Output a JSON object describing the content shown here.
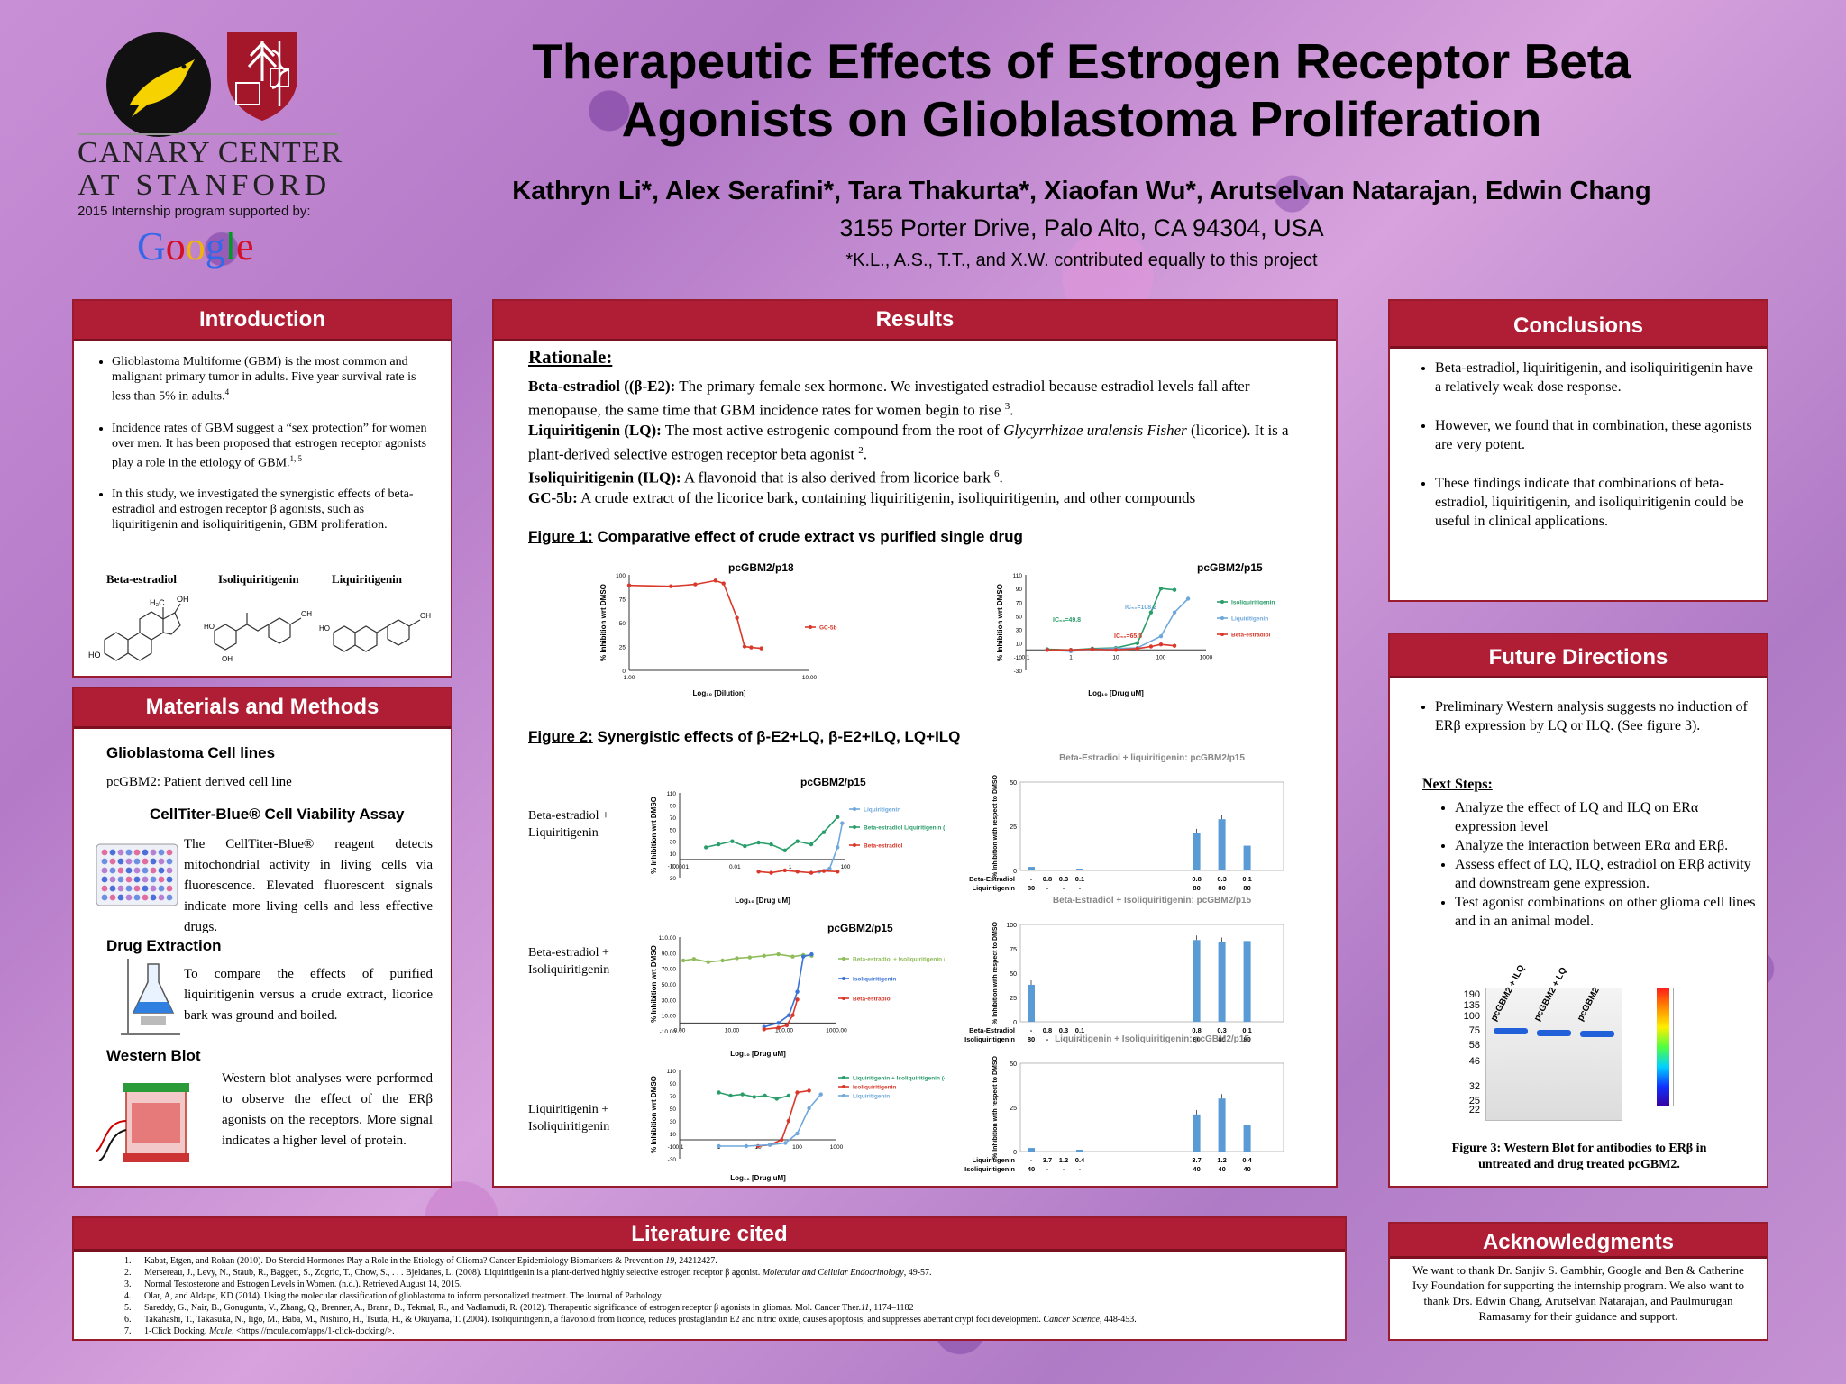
{
  "header": {
    "title_line1": "Therapeutic Effects of Estrogen Receptor Beta",
    "title_line2": "Agonists on Glioblastoma Proliferation",
    "authors": "Kathryn Li*, Alex Serafini*, Tara Thakurta*, Xiaofan Wu*, Arutselvan Natarajan, Edwin Chang",
    "address": "3155 Porter Drive, Palo Alto, CA 94304, USA",
    "note": "*K.L., A.S., T.T., and X.W. contributed equally to this project"
  },
  "logos": {
    "canary_line1": "CANARY CENTER",
    "canary_line2": "AT STANFORD",
    "supported_by": "2015 Internship program supported by:",
    "google_letters": [
      "G",
      "o",
      "o",
      "g",
      "l",
      "e"
    ],
    "google_colors": [
      "#3369e8",
      "#d50f25",
      "#eeb211",
      "#3369e8",
      "#009925",
      "#d50f25"
    ]
  },
  "introduction": {
    "heading": "Introduction",
    "bullets": [
      {
        "text": "Glioblastoma Multiforme (GBM) is the most common and malignant primary tumor in adults. Five year survival rate is less than 5% in adults.",
        "ref": "4"
      },
      {
        "text": "Incidence rates of GBM suggest  a “sex protection” for women over men. It has been proposed that estrogen receptor agonists play a role in the etiology of GBM.",
        "ref": "1, 5"
      },
      {
        "text": "In this study, we investigated the synergistic effects of beta-estradiol and estrogen receptor β agonists, such as liquiritigenin and isoliquiritigenin, GBM proliferation.",
        "ref": ""
      }
    ],
    "structures": [
      "Beta-estradiol",
      "Isoliquiritigenin",
      "Liquiritigenin"
    ],
    "struct_labels": {
      "ho": "HO",
      "oh": "OH",
      "h3c": "H₃C"
    }
  },
  "methods": {
    "heading": "Materials and Methods",
    "cell_lines_title": "Glioblastoma Cell lines",
    "cell_lines_text": "pcGBM2:   Patient derived cell line",
    "assay_title": "CellTiter-Blue® Cell Viability Assay",
    "assay_text": "The CellTiter-Blue® reagent detects mitochondrial activity in living cells via fluorescence. Elevated fluorescent signals indicate more living cells and less effective drugs.",
    "extraction_title": "Drug Extraction",
    "extraction_text": "To compare the effects of purified liquiritigenin versus a crude extract, licorice bark was ground and boiled.",
    "western_title": "Western Blot",
    "western_text": "Western blot analyses were performed to observe the effect of the ERβ agonists on the receptors. More signal indicates a higher level of protein."
  },
  "results": {
    "heading": "Results",
    "rationale": "Rationale:",
    "items": [
      {
        "term": "Beta-estradiol ((β-E2):",
        "text": " The primary female sex hormone. We investigated estradiol because estradiol levels fall after menopause, the same time that GBM incidence rates for women begin to rise ",
        "ref": "3",
        "tail": "."
      },
      {
        "term": "Liquiritigenin (LQ):",
        "text": " The most active estrogenic compound from the root of ",
        "italic": "Glycyrrhizae uralensis Fisher",
        "text2": " (licorice). It is a plant-derived selective estrogen receptor beta agonist ",
        "ref": "2",
        "tail": "."
      },
      {
        "term": "Isoliquiritigenin (ILQ):",
        "text": " A flavonoid that is also derived from licorice bark ",
        "ref": "6",
        "tail": "."
      },
      {
        "term": "GC-5b:",
        "text": " A crude extract of the licorice bark, containing liquiritigenin, isoliquiritigenin, and other compounds",
        "ref": "",
        "tail": ""
      }
    ],
    "fig1_label": "Figure 1:",
    "fig1_title": " Comparative effect of crude extract vs purified single drug",
    "fig2_label": "Figure 2:",
    "fig2_title": "  Synergistic effects of β-E2+LQ, β-E2+ILQ, LQ+ILQ",
    "row_labels": [
      [
        "Beta-estradiol +",
        "Liquiritigenin"
      ],
      [
        "Beta-estradiol +",
        "Isoliquiritigenin"
      ],
      [
        "Liquiritigenin +",
        "Isoliquiritigenin"
      ]
    ]
  },
  "chart_data": [
    {
      "type": "line",
      "title": "pcGBM2/p18",
      "ylabel": "% Inhibition wrt DMSO",
      "xlabel": "Log₁₀ [Dilution]",
      "xscale": "log",
      "xlim": [
        1,
        20
      ],
      "ylim": [
        0,
        100
      ],
      "xticks": [
        "1.00",
        "10.00"
      ],
      "yticks": [
        0,
        25,
        50,
        75,
        100
      ],
      "legend": "right",
      "series": [
        {
          "name": "GC-5b",
          "color": "#d9382a",
          "x": [
            1,
            2,
            3,
            4.2,
            4.8,
            6,
            6.8,
            7.6,
            9
          ],
          "y": [
            89,
            88,
            90,
            94,
            91,
            55,
            25,
            24,
            23
          ]
        }
      ]
    },
    {
      "type": "line",
      "title": "pcGBM2/p15",
      "ylabel": "% Inhibition wrt DMSO",
      "xlabel": "Log₁₀ [Drug uM]",
      "xscale": "log",
      "xlim": [
        0.1,
        1000
      ],
      "ylim": [
        -30,
        110
      ],
      "xticks": [
        "0.1",
        "1",
        "10",
        "100",
        "1000"
      ],
      "yticks": [
        -30,
        -10,
        10,
        30,
        50,
        70,
        90,
        110
      ],
      "annotations": [
        "IC₅₀=49.8",
        "IC₅₀=108.2",
        "IC₅₀=65.5"
      ],
      "legend": "right",
      "series": [
        {
          "name": "Isoliquiritigenin",
          "color": "#2a9d6b",
          "x": [
            0.3,
            1,
            3,
            10,
            30,
            60,
            100,
            200
          ],
          "y": [
            1,
            0,
            2,
            3,
            10,
            55,
            90,
            88
          ]
        },
        {
          "name": "Liquiritigenin",
          "color": "#6fa8dc",
          "x": [
            0.3,
            1,
            3,
            10,
            30,
            100,
            200,
            400
          ],
          "y": [
            0,
            -2,
            1,
            2,
            3,
            20,
            55,
            75
          ]
        },
        {
          "name": "Beta-estradiol",
          "color": "#d9382a",
          "x": [
            0.3,
            1,
            3,
            10,
            30,
            60,
            100,
            200
          ],
          "y": [
            0,
            0,
            1,
            0,
            2,
            5,
            8,
            6
          ]
        }
      ]
    },
    {
      "type": "line",
      "title": "pcGBM2/p15",
      "ylabel": "% Inhibition wrt DMSO",
      "xlabel": "Log₁₀ [Drug uM]",
      "xscale": "log",
      "xlim": [
        0.0001,
        200
      ],
      "ylim": [
        -30,
        110
      ],
      "xticks": [
        "0.0001",
        "0.01",
        "1",
        "100"
      ],
      "yticks": [
        -30,
        -10,
        10,
        30,
        50,
        70,
        90,
        110
      ],
      "legend": "right",
      "series": [
        {
          "name": "Liquiritigenin",
          "color": "#6fa8dc",
          "x": [
            20,
            50,
            100,
            150
          ],
          "y": [
            -20,
            -15,
            20,
            60
          ]
        },
        {
          "name": "Beta-estradiol Liquiritigenin (80uM)",
          "color": "#2a9d6b",
          "x": [
            0.001,
            0.003,
            0.01,
            0.03,
            0.1,
            0.3,
            1,
            3,
            10,
            30,
            100
          ],
          "y": [
            20,
            25,
            30,
            22,
            28,
            25,
            15,
            30,
            25,
            45,
            70
          ]
        },
        {
          "name": "Beta-estradiol",
          "color": "#d9382a",
          "x": [
            0.1,
            0.3,
            1,
            3,
            10,
            30,
            100
          ],
          "y": [
            -20,
            -22,
            -18,
            -20,
            -22,
            -19,
            -20
          ]
        }
      ]
    },
    {
      "type": "bar",
      "title": "Beta-Estradiol + liquiritigenin: pcGBM2/p15",
      "ylabel": "% Inhibition with respect to DMSO",
      "ylim": [
        0,
        50
      ],
      "yticks": [
        0,
        25,
        50
      ],
      "row_labels": [
        "Beta-Estradiol",
        "Liquiritigenin"
      ],
      "categories": [
        [
          "-",
          "80"
        ],
        [
          "0.8",
          "-"
        ],
        [
          "0.3",
          "-"
        ],
        [
          "0.1",
          "-"
        ],
        [
          "0.8",
          "80"
        ],
        [
          "0.3",
          "80"
        ],
        [
          "0.1",
          "80"
        ]
      ],
      "values": [
        2,
        0,
        0,
        1,
        21,
        29,
        14
      ]
    },
    {
      "type": "line",
      "title": "pcGBM2/p15",
      "ylabel": "% Inhibition wrt DMSO",
      "xlabel": "Log₁₀ [Drug uM]",
      "xscale": "log",
      "xlim": [
        0.5,
        1000
      ],
      "ylim": [
        -10,
        110
      ],
      "xticks": [
        "0.00",
        "10.00",
        "100.00",
        "1000.00"
      ],
      "yticks": [
        "-10.00",
        "10.00",
        "30.00",
        "50.00",
        "70.00",
        "90.00",
        "110.00"
      ],
      "legend": "right",
      "series": [
        {
          "name": "Beta-estradiol + Isoliquiritigenin (80uM)",
          "color": "#8fbc5a",
          "x": [
            0.6,
            1,
            2,
            4,
            8,
            15,
            30,
            60,
            120,
            200,
            300
          ],
          "y": [
            80,
            82,
            78,
            80,
            83,
            84,
            86,
            88,
            85,
            87,
            86
          ]
        },
        {
          "name": "Isoliquiritigenin",
          "color": "#3a73d6",
          "x": [
            30,
            60,
            100,
            150,
            200,
            300
          ],
          "y": [
            -5,
            0,
            10,
            40,
            85,
            88
          ]
        },
        {
          "name": "Beta-estradiol",
          "color": "#d9382a",
          "x": [
            30,
            60,
            90,
            120,
            150
          ],
          "y": [
            -8,
            -6,
            -3,
            10,
            30
          ]
        }
      ]
    },
    {
      "type": "bar",
      "title": "Beta-Estradiol + Isoliquiritigenin: pcGBM2/p15",
      "ylabel": "% Inhibition with respect to DMSO",
      "ylim": [
        0,
        100
      ],
      "yticks": [
        0,
        25,
        50,
        75,
        100
      ],
      "row_labels": [
        "Beta-Estradiol",
        "Isoliquiritigenin"
      ],
      "categories": [
        [
          "-",
          "80"
        ],
        [
          "0.8",
          "-"
        ],
        [
          "0.3",
          "-"
        ],
        [
          "0.1",
          "-"
        ],
        [
          "0.8",
          "80"
        ],
        [
          "0.3",
          "80"
        ],
        [
          "0.1",
          "80"
        ]
      ],
      "values": [
        38,
        0,
        0,
        0,
        84,
        82,
        83
      ]
    },
    {
      "type": "line",
      "title": "",
      "ylabel": "% Inhibition wrt DMSO",
      "xlabel": "Log₁₀ [Drug uM]",
      "xscale": "log",
      "xlim": [
        0.1,
        1000
      ],
      "ylim": [
        -30,
        110
      ],
      "xticks": [
        "0.1",
        "1",
        "10",
        "100",
        "1000"
      ],
      "yticks": [
        -30,
        -10,
        10,
        30,
        50,
        70,
        90,
        110
      ],
      "legend": "right",
      "series": [
        {
          "name": "Liquiritigenin + Isoliquiritigenin (40uM)",
          "color": "#2a9d6b",
          "x": [
            1,
            2,
            4,
            8,
            15,
            30,
            60
          ],
          "y": [
            75,
            70,
            72,
            68,
            70,
            65,
            70
          ]
        },
        {
          "name": "Isoliquiritigenin",
          "color": "#d9382a",
          "x": [
            10,
            20,
            40,
            60,
            100,
            200
          ],
          "y": [
            -10,
            -8,
            0,
            30,
            75,
            78
          ]
        },
        {
          "name": "Liquiritigenin",
          "color": "#6fa8dc",
          "x": [
            1,
            5,
            20,
            50,
            100,
            200,
            400
          ],
          "y": [
            -10,
            -10,
            -8,
            -5,
            10,
            50,
            72
          ]
        }
      ]
    },
    {
      "type": "bar",
      "title": "Liquiritigenin + Isoliquiritigenin: pcGBM2/p15",
      "ylabel": "% Inhibition with respect to DMSO",
      "ylim": [
        0,
        50
      ],
      "yticks": [
        0,
        25,
        50
      ],
      "row_labels": [
        "Liquiritigenin",
        "Isoliquiritigenin"
      ],
      "categories": [
        [
          "-",
          "40"
        ],
        [
          "3.7",
          "-"
        ],
        [
          "1.2",
          "-"
        ],
        [
          "0.4",
          "-"
        ],
        [
          "3.7",
          "40"
        ],
        [
          "1.2",
          "40"
        ],
        [
          "0.4",
          "40"
        ]
      ],
      "values": [
        2,
        0,
        0,
        1,
        21,
        30,
        15
      ]
    }
  ],
  "conclusions": {
    "heading": "Conclusions",
    "bullets": [
      "Beta-estradiol, liquiritigenin, and isoliquiritigenin have a relatively weak dose response.",
      "However, we found that in combination, these agonists are very potent.",
      "These findings indicate that combinations of beta-estradiol, liquiritigenin, and isoliquiritigenin could be useful in clinical applications."
    ]
  },
  "future": {
    "heading": "Future Directions",
    "bullet": "Preliminary Western analysis suggests no induction of  ERβ expression by LQ or ILQ. (See figure 3).",
    "next_title": "Next Steps:",
    "next": [
      "Analyze the effect of LQ and ILQ on ERα expression level",
      "Analyze the interaction between ERα and ERβ.",
      "Assess effect of LQ, ILQ, estradiol on ERβ activity and downstream gene expression.",
      "Test agonist combinations on other glioma cell lines and in an animal model."
    ],
    "blot_markers": [
      "190",
      "135",
      "100",
      "75",
      "58",
      "46",
      "32",
      "25",
      "22"
    ],
    "blot_lanes": [
      "pcGBM2 + ILQ",
      "pcGBM2 + LQ",
      "pcGBM2"
    ],
    "fig3_caption": "Figure 3: Western Blot for antibodies to ERβ in untreated and drug treated pcGBM2."
  },
  "literature": {
    "heading": "Literature cited",
    "refs": [
      {
        "n": "1.",
        "text": "Kabat, Etgen, and Rohan (2010). Do Steroid Hormones Play a Role in the Etiology of Glioma? Cancer Epidemiology Biomarkers & Prevention ",
        "italic": "19",
        "tail": ", 24212427."
      },
      {
        "n": "2.",
        "text": "Mersereau, J., Levy, N., Staub, R., Baggett, S., Zogric, T., Chow, S., . . . Bjeldanes, L. (2008). Liquiritigenin is a plant-derived highly selective estrogen receptor β agonist. ",
        "italic": "Molecular and Cellular Endocrinology",
        "tail": ", 49-57."
      },
      {
        "n": "3.",
        "text": "Normal Testosterone and Estrogen Levels in Women. (n.d.). Retrieved August 14, 2015.",
        "italic": "",
        "tail": ""
      },
      {
        "n": "4.",
        "text": "Olar, A, and Aldape, KD (2014). Using the molecular classification of glioblastoma to inform personalized treatment. The Journal of Pathology",
        "italic": "",
        "tail": ""
      },
      {
        "n": "5.",
        "text": "Sareddy, G., Nair, B., Gonugunta, V., Zhang, Q., Brenner, A., Brann, D., Tekmal, R., and Vadlamudi, R. (2012). Therapeutic significance of estrogen receptor β agonists in gliomas. Mol. Cancer Ther.",
        "italic": "11",
        "tail": ", 1174–1182"
      },
      {
        "n": "6.",
        "text": "Takahashi, T., Takasuka, N., Iigo, M., Baba, M., Nishino, H., Tsuda, H., & Okuyama, T. (2004). Isoliquiritigenin, a flavonoid from licorice, reduces prostaglandin E2 and nitric oxide, causes apoptosis, and suppresses aberrant crypt foci development. ",
        "italic": "Cancer Science,",
        "tail": " 448-453."
      },
      {
        "n": "7.",
        "text": "1-Click Docking. ",
        "italic": "Mcule",
        "tail": ". <https://mcule.com/apps/1-click-docking/>."
      }
    ]
  },
  "acknowledgments": {
    "heading": "Acknowledgments",
    "text": "We want to thank Dr. Sanjiv S. Gambhir, Google and Ben & Catherine Ivy Foundation for supporting the internship program. We also want to thank Drs. Edwin Chang, Arutselvan Natarajan, and Paulmurugan Ramasamy for their guidance and support."
  }
}
